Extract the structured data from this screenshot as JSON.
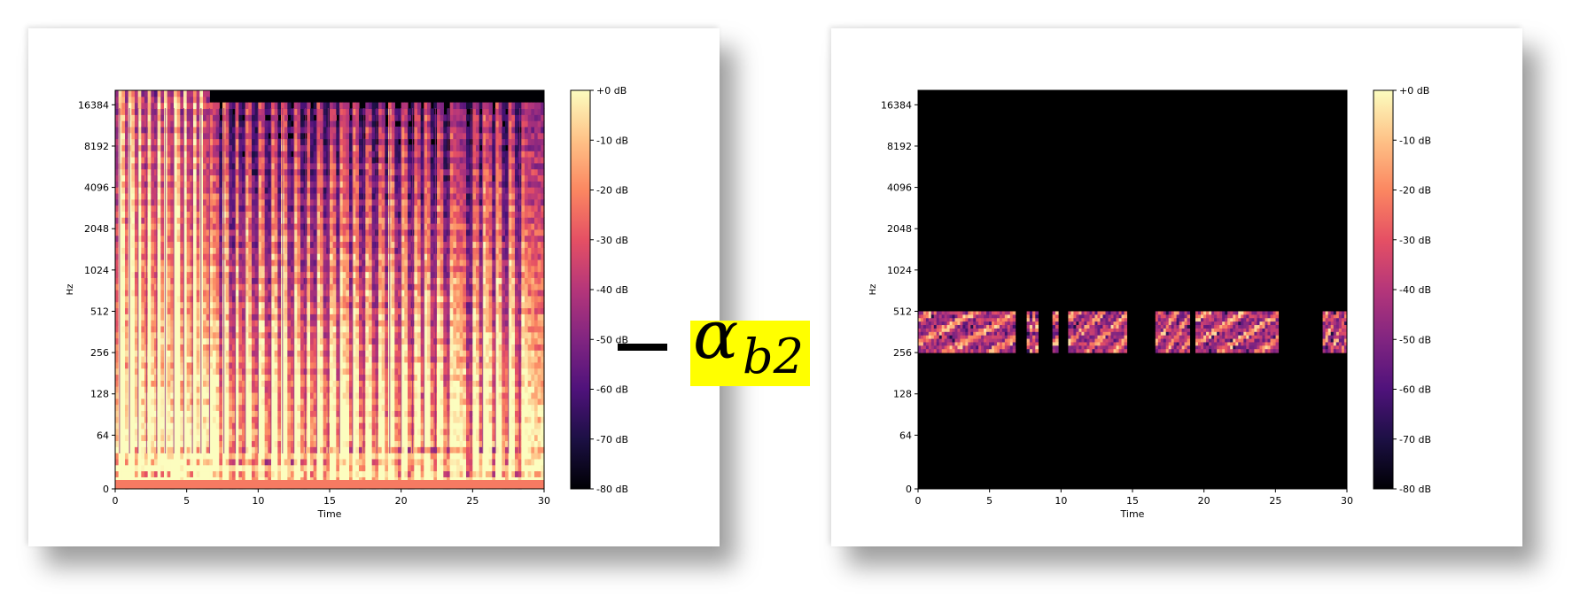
{
  "colors": {
    "cmap": [
      "#000004",
      "#1c1044",
      "#4f127b",
      "#812581",
      "#b5367a",
      "#e55064",
      "#fb8761",
      "#fec287",
      "#fcfdbf"
    ]
  },
  "equation": {
    "minus": "−",
    "alpha": "α",
    "subscript": "b2",
    "times": "×"
  },
  "chart_data": [
    {
      "type": "heatmap",
      "title": "",
      "xlabel": "Time",
      "ylabel": "Hz",
      "xlim": [
        0,
        30
      ],
      "x_ticks": [
        0,
        5,
        10,
        15,
        20,
        25,
        30
      ],
      "y_scale": "log2",
      "y_ticks": [
        "0",
        "64",
        "128",
        "256",
        "512",
        "1024",
        "2048",
        "4096",
        "8192",
        "16384"
      ],
      "colorbar": {
        "ticks": [
          "+0 dB",
          "-10 dB",
          "-20 dB",
          "-30 dB",
          "-40 dB",
          "-50 dB",
          "-60 dB",
          "-70 dB",
          "-80 dB"
        ],
        "range": [
          -80,
          0
        ]
      },
      "content": "full-band spectrogram",
      "onsets": [
        0.3,
        1.0,
        1.6,
        2.2,
        2.9,
        3.5,
        4.1,
        4.8,
        5.4,
        6.0,
        6.6,
        7.6,
        8.4,
        9.1,
        10.0,
        10.9,
        11.7,
        12.5,
        13.3,
        14.1,
        14.9,
        15.7,
        16.6,
        17.4,
        18.3,
        19.2,
        20.0,
        20.8,
        21.6,
        22.4,
        23.3,
        24.9,
        25.7,
        26.6,
        27.5,
        28.3
      ]
    },
    {
      "type": "heatmap",
      "title": "",
      "xlabel": "Time",
      "ylabel": "Hz",
      "xlim": [
        0,
        30
      ],
      "x_ticks": [
        0,
        5,
        10,
        15,
        20,
        25,
        30
      ],
      "y_scale": "log2",
      "y_ticks": [
        "0",
        "64",
        "128",
        "256",
        "512",
        "1024",
        "2048",
        "4096",
        "8192",
        "16384"
      ],
      "colorbar": {
        "ticks": [
          "+0 dB",
          "-10 dB",
          "-20 dB",
          "-30 dB",
          "-40 dB",
          "-50 dB",
          "-60 dB",
          "-70 dB",
          "-80 dB"
        ],
        "range": [
          -80,
          0
        ]
      },
      "content": "band-limited 256-512 Hz",
      "band_hz": [
        256,
        512
      ],
      "active_segments": [
        [
          0,
          6.8
        ],
        [
          7.6,
          8.4
        ],
        [
          9.4,
          9.8
        ],
        [
          10.5,
          14.6
        ],
        [
          16.6,
          19.0
        ],
        [
          19.4,
          25.2
        ],
        [
          28.3,
          30
        ]
      ]
    }
  ]
}
